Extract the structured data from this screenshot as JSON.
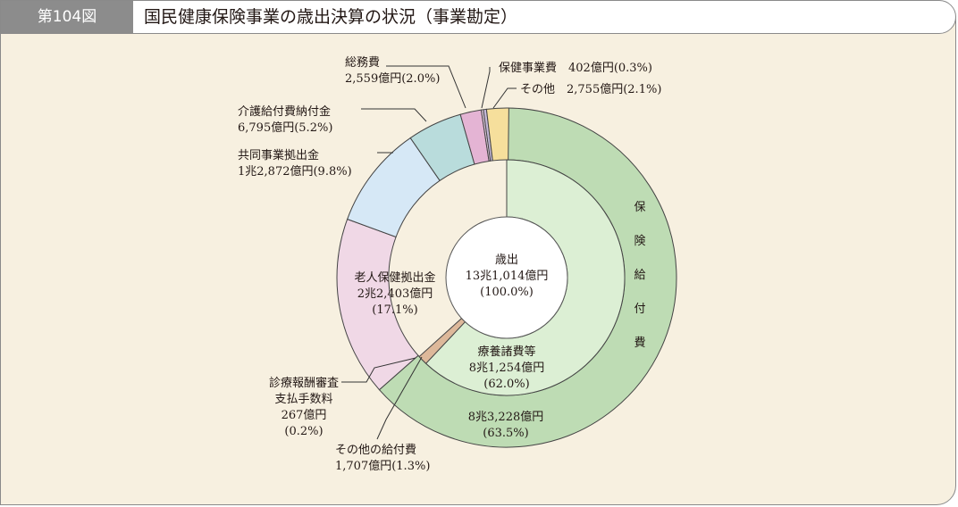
{
  "figure": {
    "number": "第104図",
    "title": "国民健康保険事業の歳出決算の状況（事業勘定）"
  },
  "chart_data": {
    "type": "pie",
    "subtype": "double-donut",
    "center_label": [
      "歳出",
      "13兆1,014億円",
      "(100.0%)"
    ],
    "outer_ring": [
      {
        "name": "保険給付費",
        "value_text": "8兆3,228億円",
        "percent_text": "(63.5%)",
        "percent": 63.5,
        "color": "#bedcb4"
      },
      {
        "name": "老人保健拠出金",
        "value_text": "2兆2,403億円",
        "percent_text": "(17.1%)",
        "percent": 17.1,
        "color": "#f0d8e6"
      },
      {
        "name": "共同事業拠出金",
        "value_text": "1兆2,872億円",
        "percent_text": "(9.8%)",
        "percent": 9.8,
        "color": "#d6e8f6"
      },
      {
        "name": "介護給付費納付金",
        "value_text": "6,795億円",
        "percent_text": "(5.2%)",
        "percent": 5.2,
        "color": "#b9dcdc"
      },
      {
        "name": "総務費",
        "value_text": "2,559億円",
        "percent_text": "(2.0%)",
        "percent": 2.0,
        "color": "#e4b4d4"
      },
      {
        "name": "診療報酬審査支払手数料",
        "value_text": "267億円",
        "percent_text": "(0.2%)",
        "percent": 0.2,
        "color": "#ead2e6"
      },
      {
        "name": "保健事業費",
        "value_text": "402億円",
        "percent_text": "(0.3%)",
        "percent": 0.3,
        "color": "#c4b8d8"
      },
      {
        "name": "その他",
        "value_text": "2,755億円",
        "percent_text": "(2.1%)",
        "percent": 2.1,
        "color": "#f6df9c"
      }
    ],
    "inner_ring": [
      {
        "name": "療養諸費等",
        "value_text": "8兆1,254億円",
        "percent_text": "(62.0%)",
        "percent": 62.0,
        "color": "#dcefd4"
      },
      {
        "name": "その他の給付費",
        "value_text": "1,707億円",
        "percent_text": "(1.3%)",
        "percent": 1.3,
        "color": "#ddb89a"
      }
    ],
    "label_lines": {
      "hokenkyufu": [
        "保",
        "険",
        "給",
        "付",
        "費"
      ],
      "outer_total": [
        "8兆3,228億円",
        "(63.5%)"
      ],
      "ryoyo": [
        "療養諸費等",
        "8兆1,254億円",
        "(62.0%)"
      ],
      "rojin": [
        "老人保健拠出金",
        "2兆2,403億円",
        "(17.1%)"
      ],
      "kyodo": [
        "共同事業拠出金",
        "1兆2,872億円(9.8%)"
      ],
      "kaigo": [
        "介護給付費納付金",
        "6,795億円(5.2%)"
      ],
      "somu": [
        "総務費",
        "2,559億円(2.0%)"
      ],
      "hoken": [
        "保健事業費　402億円(0.3%)"
      ],
      "sonota": [
        "その他　2,755億円(2.1%)"
      ],
      "shinryo": [
        "診療報酬審査",
        "支払手数料",
        "267億円",
        "(0.2%)"
      ],
      "sonotakyufu": [
        "その他の給付費",
        "1,707億円(1.3%)"
      ]
    }
  }
}
